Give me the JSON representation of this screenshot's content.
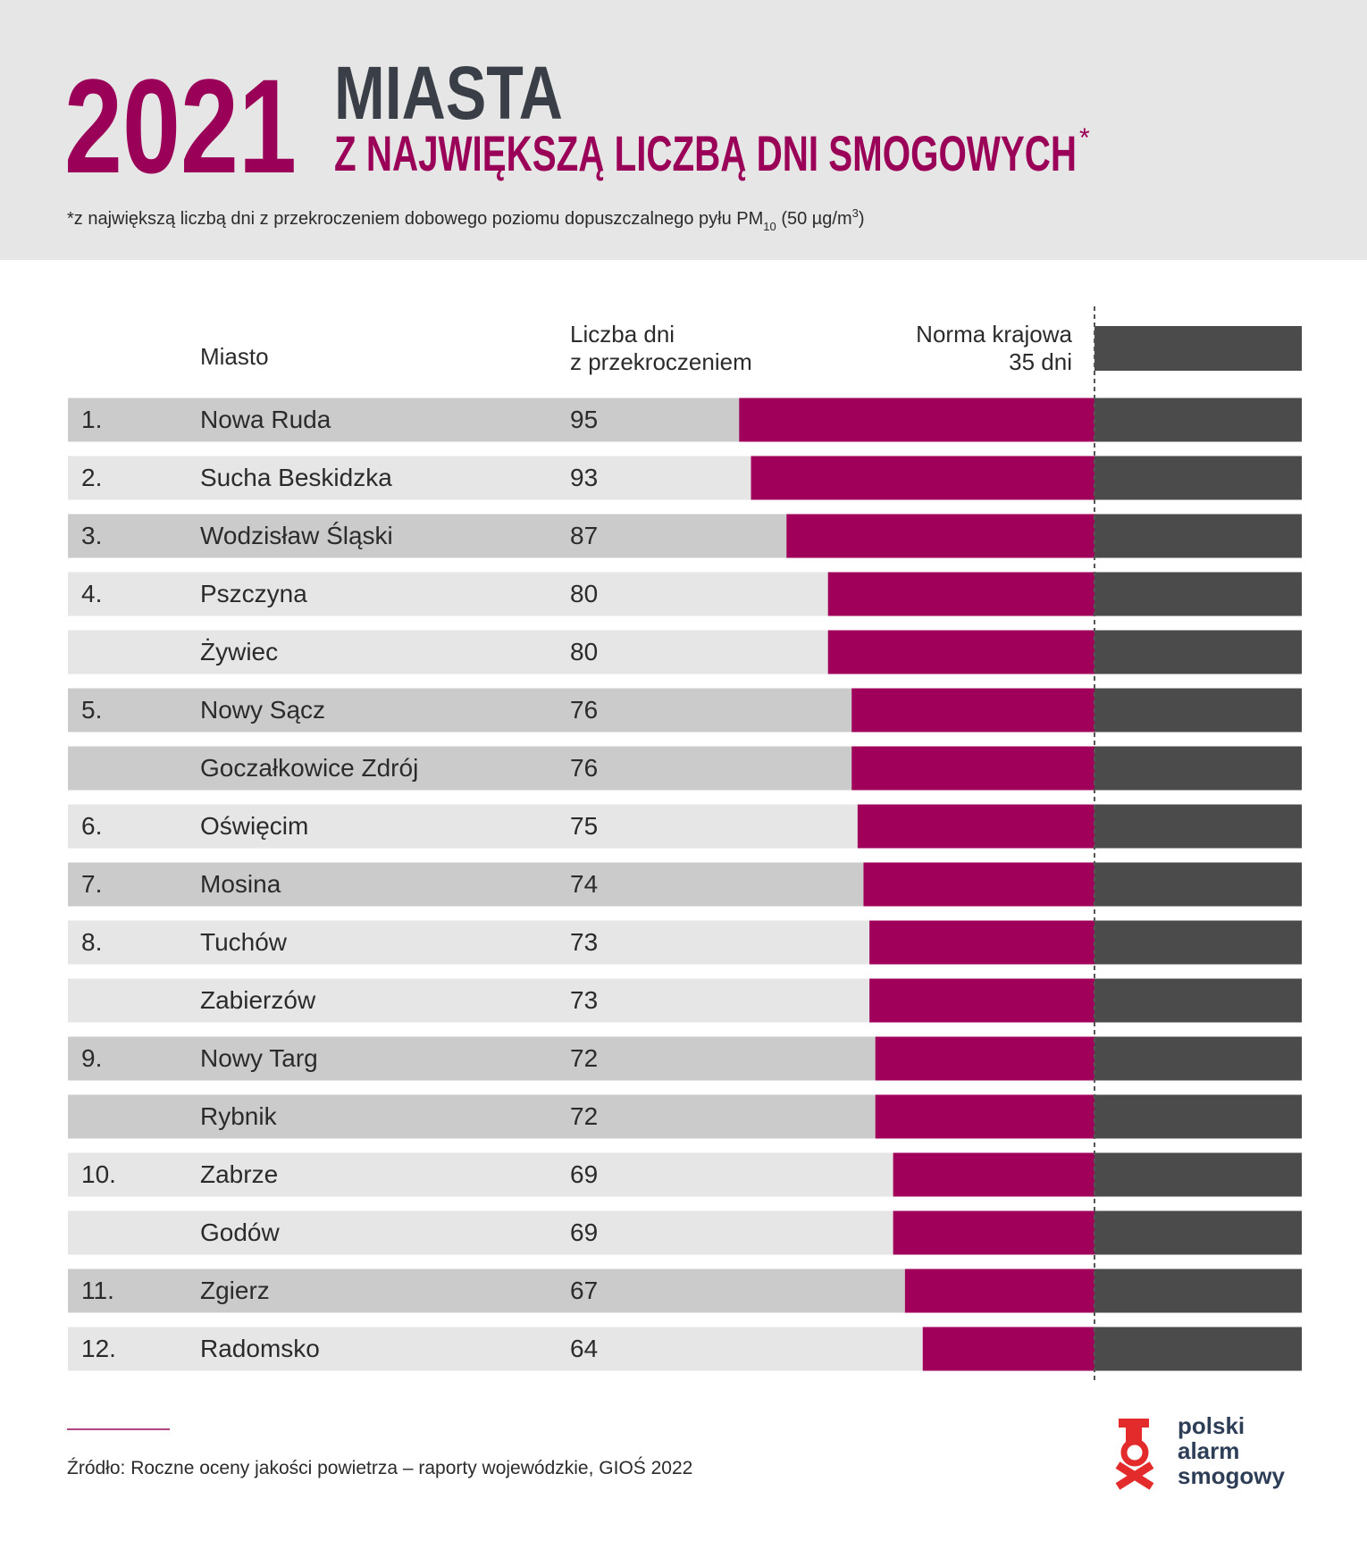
{
  "chart_data": {
    "type": "bar",
    "title_year": "2021",
    "title": "MIASTA",
    "subtitle": "Z NAJWIĘKSZĄ LICZBĄ DNI SMOGOWYCH",
    "subtitle_mark": "*",
    "footnote": {
      "text": "*z największą liczbą dni z przekroczeniem dobowego poziomu dopuszczalnego pyłu PM",
      "sub": "10",
      "unit": " (50 µg/m",
      "sup": "3",
      "end": ")"
    },
    "header": {
      "city": "Miasto",
      "value": [
        "Liczba dni",
        "z przekroczeniem"
      ],
      "norm": [
        "Norma krajowa",
        "35 dni"
      ]
    },
    "norm": 35,
    "ranks": [
      "1.",
      "2.",
      "3.",
      "4.",
      null,
      "5.",
      null,
      "6.",
      "7.",
      "8.",
      null,
      "9.",
      null,
      "10.",
      null,
      "11.",
      "12."
    ],
    "categories": [
      "Nowa Ruda",
      "Sucha Beskidzka",
      "Wodzisław Śląski",
      "Pszczyna",
      "Żywiec",
      "Nowy Sącz",
      "Goczałkowice Zdrój",
      "Oświęcim",
      "Mosina",
      "Tuchów",
      "Zabierzów",
      "Nowy Targ",
      "Rybnik",
      "Zabrze",
      "Godów",
      "Zgierz",
      "Radomsko"
    ],
    "values": [
      95,
      93,
      87,
      80,
      80,
      76,
      76,
      75,
      74,
      73,
      73,
      72,
      72,
      69,
      69,
      67,
      64
    ],
    "colors": {
      "exceed": "#a0005a",
      "norm": "#4b4b4b"
    },
    "source": "Źródło: Roczne oceny jakości powietrza – raporty wojewódzkie, GIOŚ 2022",
    "logo": [
      "polski",
      "alarm",
      "smogowy"
    ]
  }
}
